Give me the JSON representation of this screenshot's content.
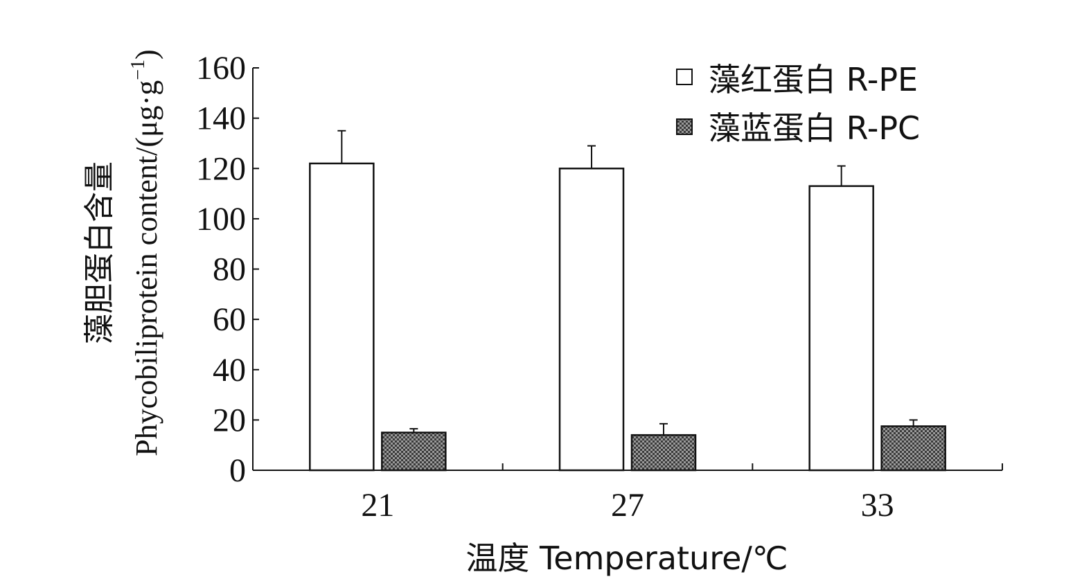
{
  "chart_data": {
    "type": "bar",
    "categories": [
      "21",
      "27",
      "33"
    ],
    "series": [
      {
        "name": "藻红蛋白 R-PE",
        "values": [
          122,
          120,
          113
        ],
        "errors": [
          13,
          9,
          8
        ],
        "color": "#ffffff",
        "pattern": "none"
      },
      {
        "name": "藻蓝蛋白 R-PC",
        "values": [
          15,
          14,
          17.5
        ],
        "errors": [
          1.5,
          4.5,
          2.5
        ],
        "color": "#555555",
        "pattern": "crosshatch"
      }
    ],
    "xlabel": "温度 Temperature/℃",
    "ylabel_cn": "藻胆蛋白含量",
    "ylabel_en": "Phycobiliprotein content/(μg·g",
    "ylabel_sup": "−1",
    "ylabel_close": ")",
    "yticks": [
      "0",
      "20",
      "40",
      "60",
      "80",
      "100",
      "120",
      "140",
      "160"
    ],
    "ylim": [
      0,
      160
    ],
    "legend_position": "top-right",
    "grid": false
  }
}
